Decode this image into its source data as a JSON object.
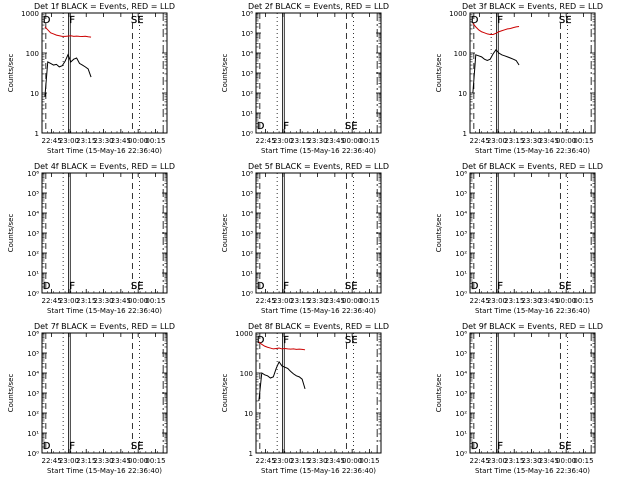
{
  "chart_data": [
    {
      "type": "line",
      "title": "Det 1f BLACK = Events, RED = LLD",
      "xlabel": "Start Time (15-May-16 22:36:40)",
      "ylabel": "Counts/sec",
      "yscale": "log",
      "ylim": [
        1,
        1000
      ],
      "yticks": [
        "1",
        "10",
        "100",
        "1000"
      ],
      "xlim_minutes": [
        0,
        108.33
      ],
      "xticks": [
        "22:45",
        "23:00",
        "23:15",
        "23:30",
        "23:45",
        "00:00",
        "00:15"
      ],
      "markers": [
        "D",
        "F",
        "SE"
      ],
      "series": [
        {
          "color": "#000000",
          "x": [
            2.5,
            5,
            7.5,
            10,
            12.5,
            15,
            17.5,
            20,
            22.5,
            25,
            27.5,
            30,
            32.5,
            35,
            37.5,
            40,
            42.5
          ],
          "values": [
            8,
            60,
            55,
            50,
            52,
            45,
            48,
            62,
            90,
            60,
            70,
            75,
            55,
            50,
            45,
            40,
            25
          ]
        },
        {
          "color": "#cc0000",
          "x": [
            2.5,
            5,
            7.5,
            10,
            12.5,
            15,
            17.5,
            20,
            22.5,
            25,
            27.5,
            30,
            32.5,
            35,
            37.5,
            40,
            42.5
          ],
          "values": [
            450,
            380,
            320,
            300,
            280,
            270,
            260,
            260,
            265,
            270,
            260,
            265,
            260,
            258,
            262,
            255,
            250
          ]
        }
      ]
    },
    {
      "type": "line",
      "title": "Det 2f BLACK = Events, RED = LLD",
      "xlabel": "Start Time (15-May-16 22:36:40)",
      "ylabel": "Counts/sec",
      "yscale": "log",
      "ylim": [
        1,
        1000000
      ],
      "yticks": [
        "10⁰",
        "10¹",
        "10²",
        "10³",
        "10⁴",
        "10⁵",
        "10⁶"
      ],
      "xlim_minutes": [
        0,
        108.33
      ],
      "xticks": [
        "22:45",
        "23:00",
        "23:15",
        "23:30",
        "23:45",
        "00:00",
        "00:15"
      ],
      "markers": [
        "D",
        "F",
        "SE"
      ],
      "series": []
    },
    {
      "type": "line",
      "title": "Det 3f BLACK = Events, RED = LLD",
      "xlabel": "Start Time (15-May-16 22:36:40)",
      "ylabel": "Counts/sec",
      "yscale": "log",
      "ylim": [
        1,
        1000
      ],
      "yticks": [
        "1",
        "10",
        "100",
        "1000"
      ],
      "xlim_minutes": [
        0,
        108.33
      ],
      "xticks": [
        "22:45",
        "23:00",
        "23:15",
        "23:30",
        "23:45",
        "00:00",
        "00:15"
      ],
      "markers": [
        "D",
        "F",
        "SE"
      ],
      "series": [
        {
          "color": "#000000",
          "x": [
            2.5,
            5,
            7.5,
            10,
            12.5,
            15,
            17.5,
            20,
            22.5,
            25,
            27.5,
            30,
            32.5,
            35,
            37.5,
            40,
            42.5
          ],
          "values": [
            10,
            90,
            85,
            80,
            70,
            65,
            70,
            95,
            120,
            100,
            90,
            85,
            80,
            75,
            70,
            65,
            50
          ]
        },
        {
          "color": "#cc0000",
          "x": [
            2.5,
            5,
            7.5,
            10,
            12.5,
            15,
            17.5,
            20,
            22.5,
            25,
            27.5,
            30,
            32.5,
            35,
            37.5,
            40,
            42.5
          ],
          "values": [
            550,
            450,
            380,
            340,
            320,
            300,
            290,
            290,
            310,
            340,
            360,
            380,
            400,
            410,
            430,
            450,
            460
          ]
        }
      ]
    },
    {
      "type": "line",
      "title": "Det 4f BLACK = Events, RED = LLD",
      "xlabel": "Start Time (15-May-16 22:36:40)",
      "ylabel": "Counts/sec",
      "yscale": "log",
      "ylim": [
        1,
        1000000
      ],
      "yticks": [
        "10⁰",
        "10¹",
        "10²",
        "10³",
        "10⁴",
        "10⁵",
        "10⁶"
      ],
      "xlim_minutes": [
        0,
        108.33
      ],
      "xticks": [
        "22:45",
        "23:00",
        "23:15",
        "23:30",
        "23:45",
        "00:00",
        "00:15"
      ],
      "markers": [
        "D",
        "F",
        "SE"
      ],
      "series": []
    },
    {
      "type": "line",
      "title": "Det 5f BLACK = Events, RED = LLD",
      "xlabel": "Start Time (15-May-16 22:36:40)",
      "ylabel": "Counts/sec",
      "yscale": "log",
      "ylim": [
        1,
        1000000
      ],
      "yticks": [
        "10⁰",
        "10¹",
        "10²",
        "10³",
        "10⁴",
        "10⁵",
        "10⁶"
      ],
      "xlim_minutes": [
        0,
        108.33
      ],
      "xticks": [
        "22:45",
        "23:00",
        "23:15",
        "23:30",
        "23:45",
        "00:00",
        "00:15"
      ],
      "markers": [
        "D",
        "F",
        "SE"
      ],
      "series": []
    },
    {
      "type": "line",
      "title": "Det 6f BLACK = Events, RED = LLD",
      "xlabel": "Start Time (15-May-16 22:36:40)",
      "ylabel": "Counts/sec",
      "yscale": "log",
      "ylim": [
        1,
        1000000
      ],
      "yticks": [
        "10⁰",
        "10¹",
        "10²",
        "10³",
        "10⁴",
        "10⁵",
        "10⁶"
      ],
      "xlim_minutes": [
        0,
        108.33
      ],
      "xticks": [
        "22:45",
        "23:00",
        "23:15",
        "23:30",
        "23:45",
        "00:00",
        "00:15"
      ],
      "markers": [
        "D",
        "F",
        "SE"
      ],
      "series": []
    },
    {
      "type": "line",
      "title": "Det 7f BLACK = Events, RED = LLD",
      "xlabel": "Start Time (15-May-16 22:36:40)",
      "ylabel": "Counts/sec",
      "yscale": "log",
      "ylim": [
        1,
        1000000
      ],
      "yticks": [
        "10⁰",
        "10¹",
        "10²",
        "10³",
        "10⁴",
        "10⁵",
        "10⁶"
      ],
      "xlim_minutes": [
        0,
        108.33
      ],
      "xticks": [
        "22:45",
        "23:00",
        "23:15",
        "23:30",
        "23:45",
        "00:00",
        "00:15"
      ],
      "markers": [
        "D",
        "F",
        "SE"
      ],
      "series": []
    },
    {
      "type": "line",
      "title": "Det 8f BLACK = Events, RED = LLD",
      "xlabel": "Start Time (15-May-16 22:36:40)",
      "ylabel": "Counts/sec",
      "yscale": "log",
      "ylim": [
        1,
        1000
      ],
      "yticks": [
        "1",
        "10",
        "100",
        "1000"
      ],
      "xlim_minutes": [
        0,
        108.33
      ],
      "xticks": [
        "22:45",
        "23:00",
        "23:15",
        "23:30",
        "23:45",
        "00:00",
        "00:15"
      ],
      "markers": [
        "D",
        "F",
        "SE"
      ],
      "series": [
        {
          "color": "#000000",
          "x": [
            2.5,
            5,
            7.5,
            10,
            12.5,
            15,
            17.5,
            20,
            22.5,
            25,
            27.5,
            30,
            32.5,
            35,
            37.5,
            40,
            42.5
          ],
          "values": [
            20,
            100,
            90,
            85,
            75,
            80,
            130,
            190,
            150,
            140,
            130,
            110,
            95,
            85,
            80,
            70,
            40
          ]
        },
        {
          "color": "#cc0000",
          "x": [
            2.5,
            5,
            7.5,
            10,
            12.5,
            15,
            17.5,
            20,
            22.5,
            25,
            27.5,
            30,
            32.5,
            35,
            37.5,
            40,
            42.5
          ],
          "values": [
            600,
            520,
            470,
            440,
            420,
            400,
            410,
            420,
            400,
            410,
            400,
            395,
            400,
            390,
            395,
            390,
            380
          ]
        }
      ]
    },
    {
      "type": "line",
      "title": "Det 9f BLACK = Events, RED = LLD",
      "xlabel": "Start Time (15-May-16 22:36:40)",
      "ylabel": "Counts/sec",
      "yscale": "log",
      "ylim": [
        1,
        1000000
      ],
      "yticks": [
        "10⁰",
        "10¹",
        "10²",
        "10³",
        "10⁴",
        "10⁵",
        "10⁶"
      ],
      "xlim_minutes": [
        0,
        108.33
      ],
      "xticks": [
        "22:45",
        "23:00",
        "23:15",
        "23:30",
        "23:45",
        "00:00",
        "00:15"
      ],
      "markers": [
        "D",
        "F",
        "SE"
      ],
      "series": []
    }
  ]
}
